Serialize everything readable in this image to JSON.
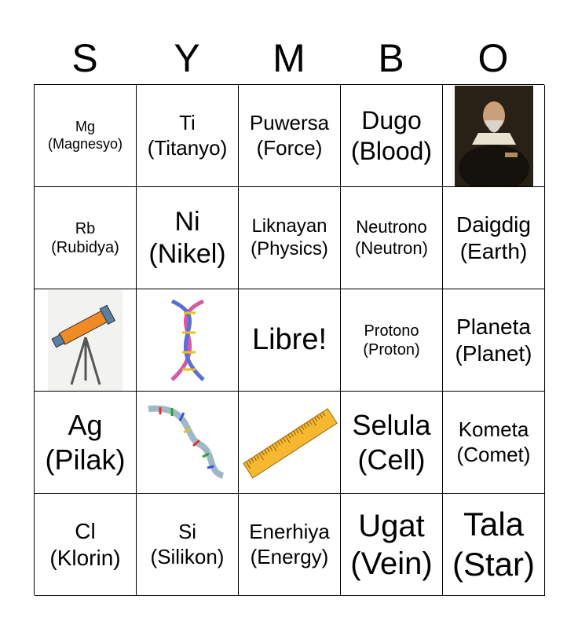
{
  "header": [
    "S",
    "Y",
    "M",
    "B",
    "O"
  ],
  "cells": [
    {
      "lines": [
        "Mg",
        "(Magnesyo)"
      ]
    },
    {
      "lines": [
        "Ti",
        "(Titanyo)"
      ]
    },
    {
      "lines": [
        "Puwersa",
        "(Force)"
      ]
    },
    {
      "lines": [
        "Dugo",
        "(Blood)"
      ]
    },
    {
      "image": "portrait-galileo"
    },
    {
      "lines": [
        "Rb",
        "(Rubidya)"
      ]
    },
    {
      "lines": [
        "Ni",
        "(Nikel)"
      ]
    },
    {
      "lines": [
        "Liknayan",
        "(Physics)"
      ]
    },
    {
      "lines": [
        "Neutrono",
        "(Neutron)"
      ]
    },
    {
      "lines": [
        "Daigdig",
        "(Earth)"
      ]
    },
    {
      "image": "telescope"
    },
    {
      "image": "dna-helix"
    },
    {
      "lines": [
        "Libre!"
      ]
    },
    {
      "lines": [
        "Protono",
        "(Proton)"
      ]
    },
    {
      "lines": [
        "Planeta",
        "(Planet)"
      ]
    },
    {
      "lines": [
        "Ag",
        "(Pilak)"
      ]
    },
    {
      "image": "dna-strand"
    },
    {
      "image": "ruler"
    },
    {
      "lines": [
        "Selula",
        "(Cell)"
      ]
    },
    {
      "lines": [
        "Kometa",
        "(Comet)"
      ]
    },
    {
      "lines": [
        "Cl",
        "(Klorin)"
      ]
    },
    {
      "lines": [
        "Si",
        "(Silikon)"
      ]
    },
    {
      "lines": [
        "Enerhiya",
        "(Energy)"
      ]
    },
    {
      "lines": [
        "Ugat",
        "(Vein)"
      ]
    },
    {
      "lines": [
        "Tala",
        "(Star)"
      ]
    }
  ]
}
